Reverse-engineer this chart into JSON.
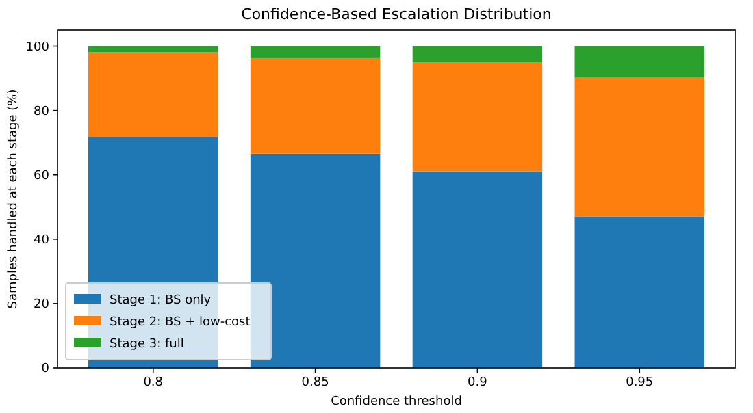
{
  "chart_data": {
    "type": "bar",
    "title": "Confidence-Based Escalation Distribution",
    "xlabel": "Confidence threshold",
    "ylabel": "Samples handled at each stage (%)",
    "categories": [
      "0.8",
      "0.85",
      "0.9",
      "0.95"
    ],
    "stacked": true,
    "series": [
      {
        "name": "Stage 1: BS only",
        "color": "#1f77b4",
        "values": [
          71.8,
          66.6,
          61.1,
          47.1
        ]
      },
      {
        "name": "Stage 2: BS + low-cost",
        "color": "#ff7f0e",
        "values": [
          26.3,
          29.7,
          33.8,
          43.1
        ]
      },
      {
        "name": "Stage 3: full",
        "color": "#2ca02c",
        "values": [
          1.9,
          3.7,
          5.1,
          9.8
        ]
      }
    ],
    "ylim": [
      0,
      105
    ],
    "yticks": [
      0,
      20,
      40,
      60,
      80,
      100
    ],
    "legend": "bottom left",
    "grid": false
  }
}
